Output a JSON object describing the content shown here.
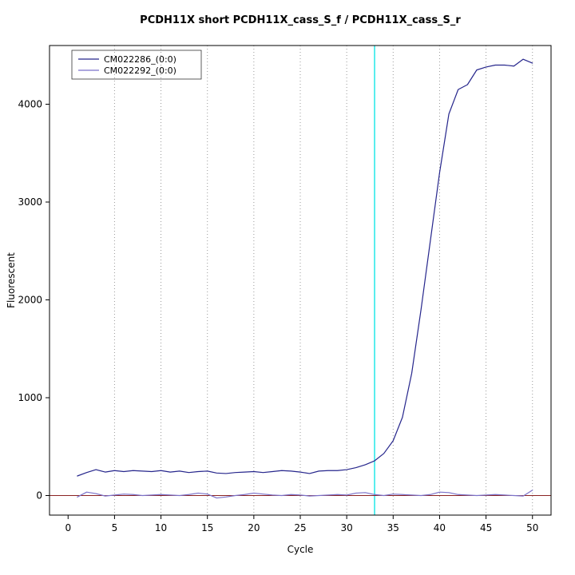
{
  "figure": {
    "title": "PCDH11X short PCDH11X_cass_S_f / PCDH11X_cass_S_r"
  },
  "chart_data": {
    "type": "line",
    "title": "PCDH11X short PCDH11X_cass_S_f / PCDH11X_cass_S_r",
    "xlabel": "Cycle",
    "ylabel": "Fluorescent",
    "xlim": [
      -2,
      52
    ],
    "ylim": [
      -200,
      4600
    ],
    "x_ticks": [
      0,
      5,
      10,
      15,
      20,
      25,
      30,
      35,
      40,
      45,
      50
    ],
    "y_ticks": [
      0,
      1000,
      2000,
      3000,
      4000
    ],
    "grid_x": [
      5,
      10,
      15,
      20,
      25,
      30,
      35,
      40,
      45,
      50
    ],
    "ct_line_x": 33,
    "threshold_line_y": 0,
    "colors": {
      "series1": "#26268c",
      "series2": "#7b72c9",
      "threshold": "#8b2323",
      "ct": "#00e5e5",
      "grid": "#999999",
      "axis": "#000000",
      "background": "#ffffff"
    },
    "legend": [
      {
        "label": "CM022286_(0:0)",
        "color": "#26268c"
      },
      {
        "label": "CM022292_(0:0)",
        "color": "#7b72c9"
      }
    ],
    "x": [
      1,
      2,
      3,
      4,
      5,
      6,
      7,
      8,
      9,
      10,
      11,
      12,
      13,
      14,
      15,
      16,
      17,
      18,
      19,
      20,
      21,
      22,
      23,
      24,
      25,
      26,
      27,
      28,
      29,
      30,
      31,
      32,
      33,
      34,
      35,
      36,
      37,
      38,
      39,
      40,
      41,
      42,
      43,
      44,
      45,
      46,
      47,
      48,
      49,
      50
    ],
    "series": [
      {
        "name": "CM022286_(0:0)",
        "color": "#26268c",
        "values": [
          200,
          235,
          265,
          240,
          255,
          245,
          255,
          250,
          245,
          255,
          240,
          250,
          235,
          245,
          250,
          230,
          225,
          235,
          240,
          245,
          235,
          245,
          255,
          250,
          240,
          225,
          250,
          255,
          255,
          265,
          285,
          315,
          355,
          430,
          560,
          800,
          1250,
          1900,
          2600,
          3300,
          3900,
          4150,
          4200,
          4350,
          4380,
          4400,
          4400,
          4390,
          4460,
          4420
        ]
      },
      {
        "name": "CM022292_(0:0)",
        "color": "#7b72c9",
        "values": [
          -15,
          35,
          20,
          -5,
          5,
          15,
          10,
          0,
          5,
          10,
          5,
          0,
          10,
          25,
          15,
          -25,
          -15,
          0,
          10,
          25,
          15,
          5,
          0,
          10,
          5,
          -5,
          0,
          5,
          10,
          5,
          25,
          30,
          10,
          0,
          15,
          10,
          5,
          0,
          10,
          35,
          30,
          10,
          5,
          0,
          5,
          10,
          5,
          0,
          -5,
          55
        ]
      }
    ]
  }
}
